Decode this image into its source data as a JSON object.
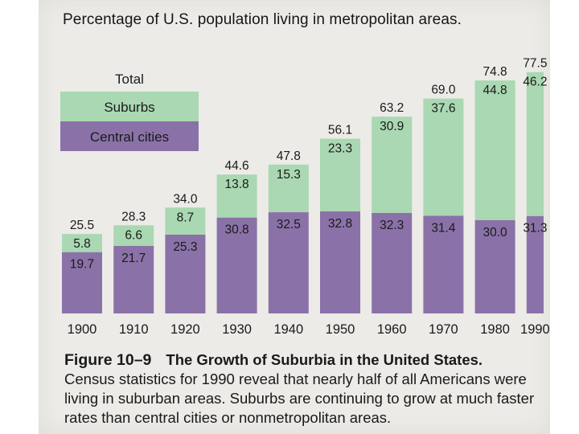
{
  "chart_data": {
    "type": "bar",
    "stacked": true,
    "title": "Percentage of U.S. population living in metropolitan areas.",
    "categories": [
      "1900",
      "1910",
      "1920",
      "1930",
      "1940",
      "1950",
      "1960",
      "1970",
      "1980",
      "1990"
    ],
    "series": [
      {
        "name": "Central cities",
        "values": [
          19.7,
          21.7,
          25.3,
          30.8,
          32.5,
          32.8,
          32.3,
          31.4,
          30.0,
          31.3
        ],
        "color": "#8a72a8"
      },
      {
        "name": "Suburbs",
        "values": [
          5.8,
          6.6,
          8.7,
          13.8,
          15.3,
          23.3,
          30.9,
          37.6,
          44.8,
          46.2
        ],
        "color": "#a9d8b2"
      }
    ],
    "totals": {
      "name": "Total",
      "values": [
        25.5,
        28.3,
        34.0,
        44.6,
        47.8,
        56.1,
        63.2,
        69.0,
        74.8,
        77.5
      ]
    },
    "ylim": [
      0,
      80
    ],
    "legend_position": "top-left",
    "grid": false
  },
  "caption": {
    "label": "Figure 10–9",
    "title": "The Growth of Suburbia in the United States.",
    "text": "Census statistics for 1990 reveal that nearly half of all Americans were living in suburban areas. Suburbs are continuing to grow at much faster rates than central cities or nonmetropolitan areas."
  }
}
